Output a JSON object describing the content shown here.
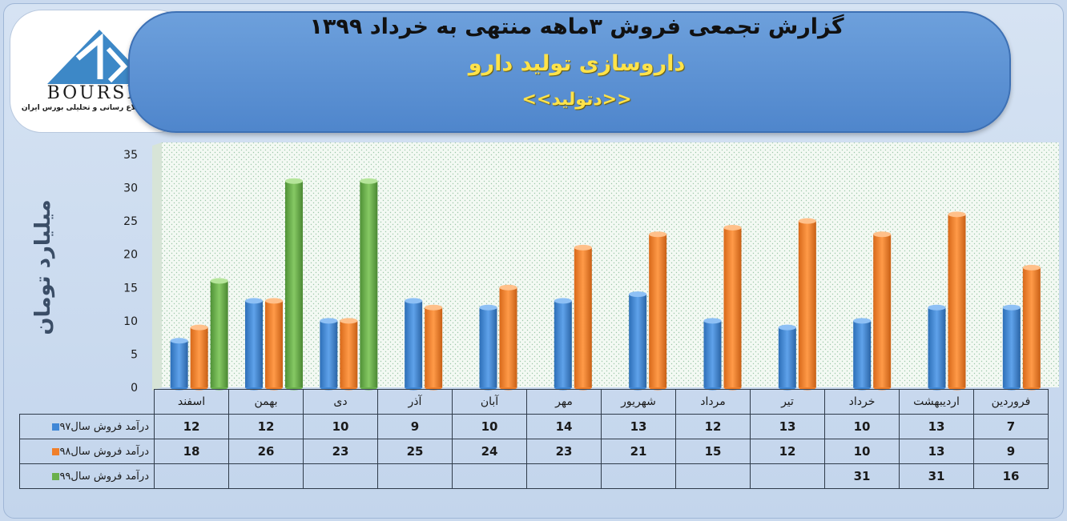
{
  "header": {
    "title": "گزارش تجمعی فروش ۳ماهه منتهی به خرداد ۱۳۹۹",
    "company": "داروسازی تولید دارو",
    "ticker": "<<دتولید>>"
  },
  "logo": {
    "word": "BOURSE",
    "caption": "پایگاه اطلاع رسانی و تحلیلی بورس ایران"
  },
  "colors": {
    "s97": "#3f87d6",
    "s98": "#f07f2a",
    "s99": "#6ab04c"
  },
  "chart_data": {
    "type": "bar",
    "categories": [
      "فروردین",
      "اردیبهشت",
      "خرداد",
      "تیر",
      "مرداد",
      "شهریور",
      "مهر",
      "آبان",
      "آذر",
      "دی",
      "بهمن",
      "اسفند"
    ],
    "series": [
      {
        "name": "درآمد فروش سال۹۷",
        "values": [
          7,
          13,
          10,
          13,
          12,
          13,
          14,
          10,
          9,
          10,
          12,
          12
        ]
      },
      {
        "name": "درآمد فروش سال۹۸",
        "values": [
          9,
          13,
          10,
          12,
          15,
          21,
          23,
          24,
          25,
          23,
          26,
          18
        ]
      },
      {
        "name": "درآمد فروش سال۹۹",
        "values": [
          16,
          31,
          31,
          null,
          null,
          null,
          null,
          null,
          null,
          null,
          null,
          null
        ]
      }
    ],
    "ylabel": "میلیارد تومان",
    "ylim": [
      0,
      35
    ],
    "yticks": [
      0,
      5,
      10,
      15,
      20,
      25,
      30,
      35
    ],
    "grid": false,
    "legend": "data-table"
  }
}
